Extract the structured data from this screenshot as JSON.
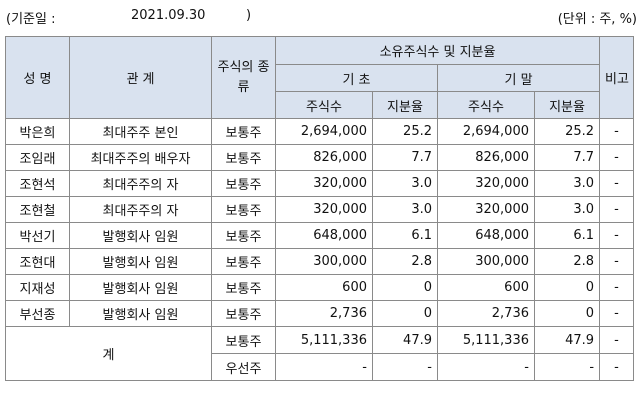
{
  "header": {
    "base_date_open": "(기준일 :",
    "base_date": "2021.09.30",
    "base_date_close": ")",
    "unit": "(단위 : 주, %)"
  },
  "table": {
    "col_name": "성 명",
    "col_relation": "관 계",
    "col_stock_type": "주식의 종류",
    "col_holdings": "소유주식수 및 지분율",
    "col_begin": "기 초",
    "col_end": "기 말",
    "col_shares": "주식수",
    "col_ratio": "지분율",
    "col_note": "비고",
    "rows": [
      {
        "name": "박은희",
        "relation": "최대주주 본인",
        "type": "보통주",
        "begin_shares": "2,694,000",
        "begin_ratio": "25.2",
        "end_shares": "2,694,000",
        "end_ratio": "25.2",
        "note": "-"
      },
      {
        "name": "조임래",
        "relation": "최대주주의 배우자",
        "type": "보통주",
        "begin_shares": "826,000",
        "begin_ratio": "7.7",
        "end_shares": "826,000",
        "end_ratio": "7.7",
        "note": "-"
      },
      {
        "name": "조현석",
        "relation": "최대주주의 자",
        "type": "보통주",
        "begin_shares": "320,000",
        "begin_ratio": "3.0",
        "end_shares": "320,000",
        "end_ratio": "3.0",
        "note": "-"
      },
      {
        "name": "조현철",
        "relation": "최대주주의 자",
        "type": "보통주",
        "begin_shares": "320,000",
        "begin_ratio": "3.0",
        "end_shares": "320,000",
        "end_ratio": "3.0",
        "note": "-"
      },
      {
        "name": "박선기",
        "relation": "발행회사 임원",
        "type": "보통주",
        "begin_shares": "648,000",
        "begin_ratio": "6.1",
        "end_shares": "648,000",
        "end_ratio": "6.1",
        "note": "-"
      },
      {
        "name": "조현대",
        "relation": "발행회사 임원",
        "type": "보통주",
        "begin_shares": "300,000",
        "begin_ratio": "2.8",
        "end_shares": "300,000",
        "end_ratio": "2.8",
        "note": "-"
      },
      {
        "name": "지재성",
        "relation": "발행회사 임원",
        "type": "보통주",
        "begin_shares": "600",
        "begin_ratio": "0",
        "end_shares": "600",
        "end_ratio": "0",
        "note": "-"
      },
      {
        "name": "부선종",
        "relation": "발행회사 임원",
        "type": "보통주",
        "begin_shares": "2,736",
        "begin_ratio": "0",
        "end_shares": "2,736",
        "end_ratio": "0",
        "note": "-"
      }
    ],
    "total": {
      "label": "계",
      "rows": [
        {
          "type": "보통주",
          "begin_shares": "5,111,336",
          "begin_ratio": "47.9",
          "end_shares": "5,111,336",
          "end_ratio": "47.9",
          "note": "-"
        },
        {
          "type": "우선주",
          "begin_shares": "-",
          "begin_ratio": "-",
          "end_shares": "-",
          "end_ratio": "-",
          "note": "-"
        }
      ]
    }
  }
}
